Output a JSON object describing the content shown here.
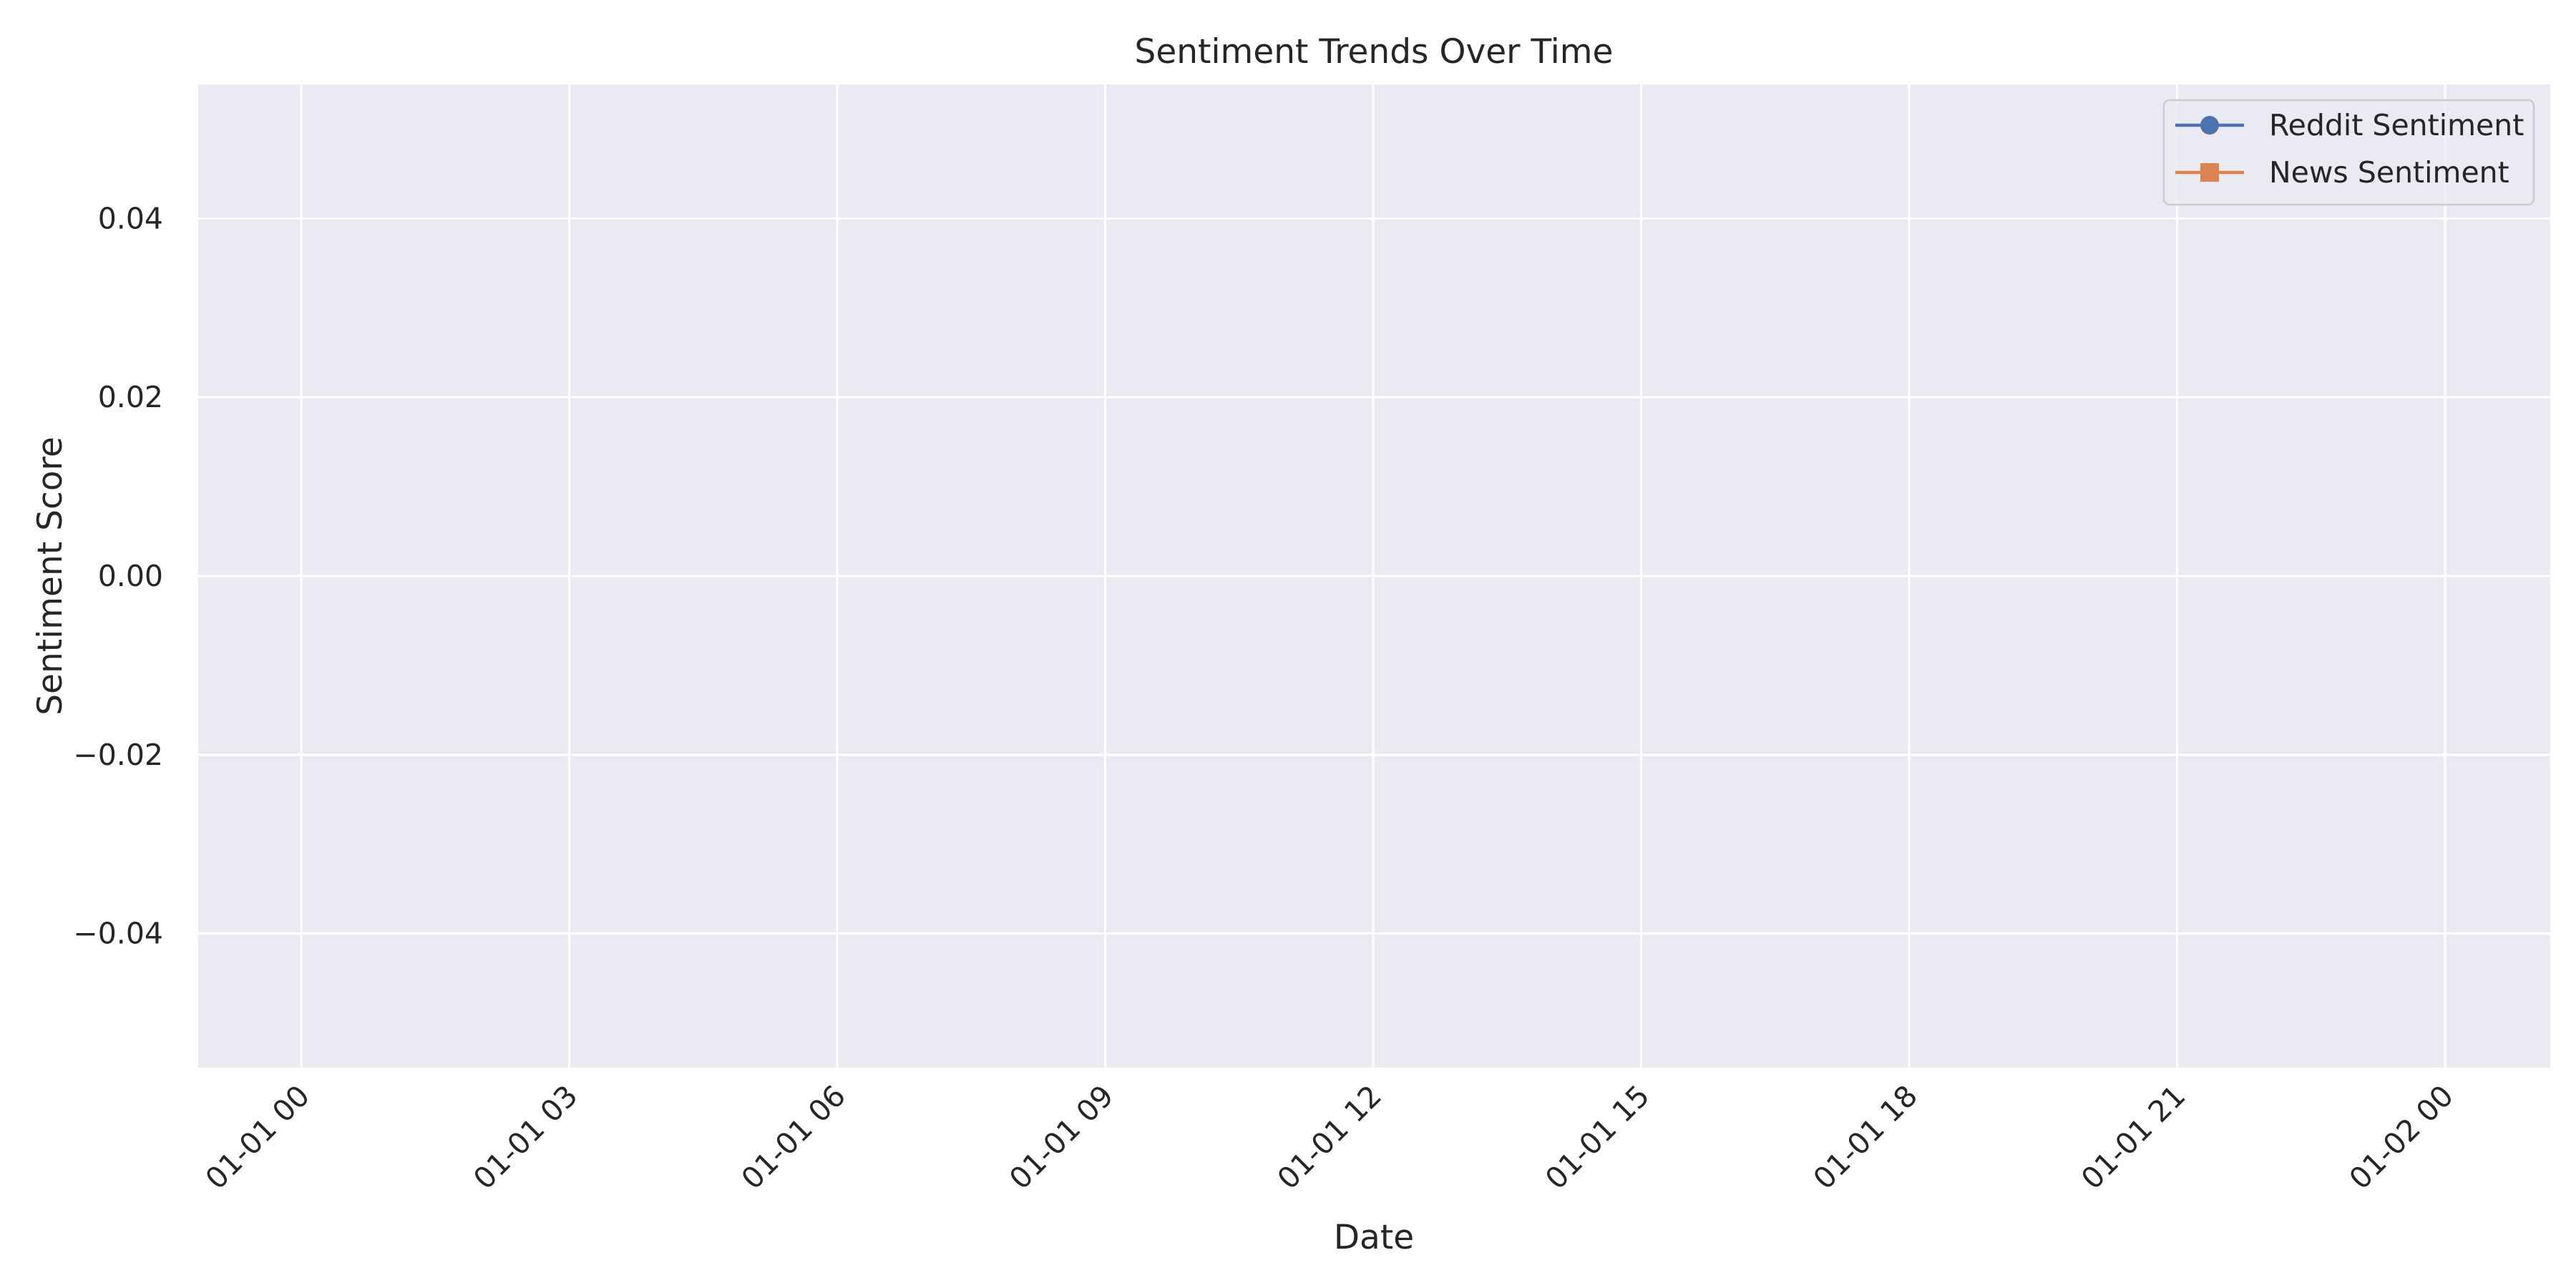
{
  "chart_data": {
    "type": "line",
    "title": "Sentiment Trends Over Time",
    "xlabel": "Date",
    "ylabel": "Sentiment Score",
    "x_ticks": [
      "01-01 00",
      "01-01 03",
      "01-01 06",
      "01-01 09",
      "01-01 12",
      "01-01 15",
      "01-01 18",
      "01-01 21",
      "01-02 00"
    ],
    "x_tick_rotation_deg": -45,
    "xlim": [
      "01-01 00",
      "01-02 00"
    ],
    "ylim": [
      -0.055,
      0.055
    ],
    "y_ticks": [
      0.04,
      0.02,
      0.0,
      -0.02,
      -0.04
    ],
    "y_tick_labels": [
      "0.04",
      "0.02",
      "0.00",
      "−0.02",
      "−0.04"
    ],
    "grid": true,
    "background": "#eaeaf2",
    "grid_color": "#ffffff",
    "legend_position": "top-right",
    "series": [
      {
        "name": "Reddit Sentiment",
        "color": "#4c72b0",
        "marker": "circle",
        "x": [],
        "y": []
      },
      {
        "name": "News Sentiment",
        "color": "#dd8452",
        "marker": "square",
        "x": [],
        "y": []
      }
    ]
  }
}
